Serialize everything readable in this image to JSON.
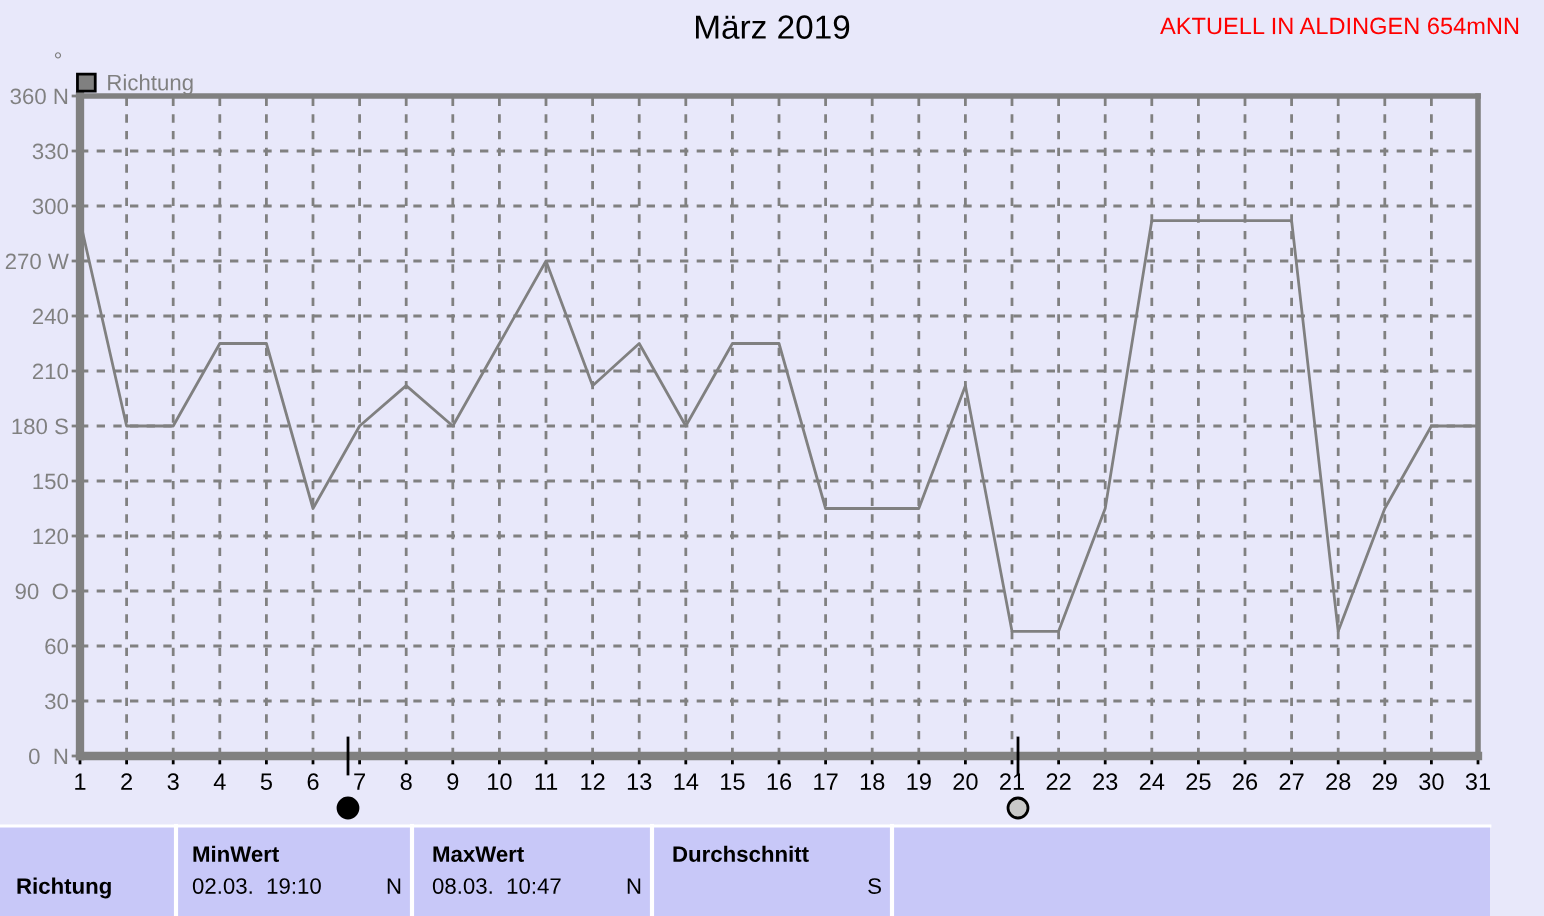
{
  "chart_data": {
    "type": "line",
    "title": "März 2019",
    "ylabel": "°",
    "x": [
      1,
      2,
      3,
      4,
      5,
      6,
      7,
      8,
      9,
      10,
      11,
      12,
      13,
      14,
      15,
      16,
      17,
      18,
      19,
      20,
      21,
      22,
      23,
      24,
      25,
      26,
      27,
      28,
      29,
      30,
      31
    ],
    "series": [
      {
        "name": "Richtung",
        "color": "#808080",
        "values": [
          292,
          180,
          180,
          225,
          225,
          135,
          180,
          202,
          180,
          225,
          270,
          202,
          225,
          180,
          225,
          225,
          135,
          135,
          135,
          202,
          68,
          68,
          135,
          292,
          292,
          292,
          292,
          68,
          135,
          180,
          180
        ]
      }
    ],
    "xlim": [
      1,
      31
    ],
    "xticks": [
      1,
      2,
      3,
      4,
      5,
      6,
      7,
      8,
      9,
      10,
      11,
      12,
      13,
      14,
      15,
      16,
      17,
      18,
      19,
      20,
      21,
      22,
      23,
      24,
      25,
      26,
      27,
      28,
      29,
      30,
      31
    ],
    "ylim": [
      0,
      360
    ],
    "yticks": [
      {
        "value": 0,
        "label": "0  N"
      },
      30,
      60,
      {
        "value": 90,
        "label": "90  O"
      },
      120,
      150,
      {
        "value": 180,
        "label": "180 S"
      },
      210,
      240,
      {
        "value": 270,
        "label": "270 W"
      },
      300,
      330,
      {
        "value": 360,
        "label": "360 N"
      }
    ],
    "grid": true,
    "legend": "top left",
    "line_style": "solid",
    "annotations": [
      "AKTUELL IN ALDINGEN 654mNN",
      "Richtung",
      "MinWert",
      "02.03.  19:10",
      "N",
      "MaxWert",
      "08.03.  10:47",
      "N",
      "Durchschnitt",
      "S"
    ]
  }
}
